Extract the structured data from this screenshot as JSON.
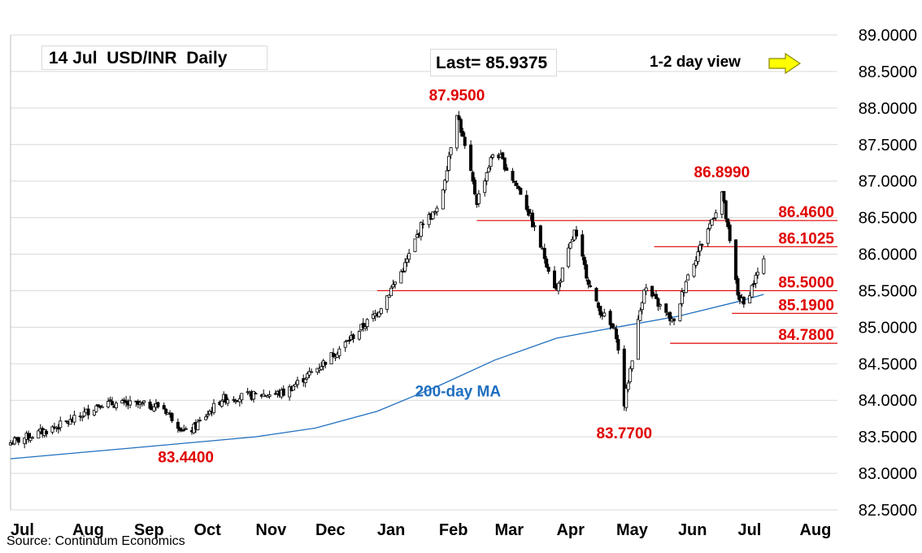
{
  "header": {
    "title": "14 Jul  USD/INR  Daily",
    "last": "Last= 85.9375",
    "view": "1-2 day view",
    "view_arrow": "right-arrow-icon",
    "source": "Source: Continuum Economics"
  },
  "colors": {
    "candle_up": "#ffffff",
    "candle_down": "#000000",
    "ma_line": "#1f6fbf",
    "annotation": "#e00000",
    "arrow_fill": "#ffff00",
    "grid": "#d9d9d9"
  },
  "chart_data": {
    "type": "candlestick",
    "title": "14 Jul  USD/INR  Daily",
    "x_tick_labels": [
      "Jul",
      "Aug",
      "Sep",
      "Oct",
      "Nov",
      "Dec",
      "Jan",
      "Feb",
      "Mar",
      "Apr",
      "May",
      "Jun",
      "Jul",
      "Aug"
    ],
    "y_tick_labels": [
      "89.0000",
      "88.5000",
      "88.0000",
      "87.5000",
      "87.0000",
      "86.5000",
      "86.0000",
      "85.5000",
      "85.0000",
      "84.5000",
      "84.0000",
      "83.5000",
      "83.0000",
      "82.5000"
    ],
    "ylim": [
      82.5,
      89.0
    ],
    "grid": true,
    "y_axis_side": "right",
    "last_close": 85.9375,
    "series_points": [
      {
        "date": "2024-07-01",
        "close": 83.42
      },
      {
        "date": "2024-07-15",
        "close": 83.55
      },
      {
        "date": "2024-08-01",
        "close": 83.72
      },
      {
        "date": "2024-08-15",
        "close": 83.96
      },
      {
        "date": "2024-09-01",
        "close": 83.94
      },
      {
        "date": "2024-09-15",
        "close": 83.92
      },
      {
        "date": "2024-09-27",
        "close": 83.55
      },
      {
        "date": "2024-10-01",
        "close": 83.62
      },
      {
        "date": "2024-10-15",
        "close": 84.02
      },
      {
        "date": "2024-11-01",
        "close": 84.07
      },
      {
        "date": "2024-11-15",
        "close": 84.1
      },
      {
        "date": "2024-12-01",
        "close": 84.42
      },
      {
        "date": "2024-12-15",
        "close": 84.75
      },
      {
        "date": "2025-01-01",
        "close": 85.2
      },
      {
        "date": "2025-01-15",
        "close": 85.85
      },
      {
        "date": "2025-01-24",
        "close": 86.45
      },
      {
        "date": "2025-02-01",
        "close": 86.6
      },
      {
        "date": "2025-02-10",
        "close": 87.95
      },
      {
        "date": "2025-02-20",
        "close": 86.72
      },
      {
        "date": "2025-03-01",
        "close": 87.45
      },
      {
        "date": "2025-03-15",
        "close": 86.8
      },
      {
        "date": "2025-04-01",
        "close": 85.5
      },
      {
        "date": "2025-04-10",
        "close": 86.3
      },
      {
        "date": "2025-04-20",
        "close": 85.35
      },
      {
        "date": "2025-05-01",
        "close": 84.9
      },
      {
        "date": "2025-05-05",
        "close": 83.95
      },
      {
        "date": "2025-05-15",
        "close": 85.55
      },
      {
        "date": "2025-05-30",
        "close": 85.05
      },
      {
        "date": "2025-06-05",
        "close": 85.65
      },
      {
        "date": "2025-06-20",
        "close": 86.6
      },
      {
        "date": "2025-06-23",
        "close": 86.85
      },
      {
        "date": "2025-07-01",
        "close": 85.45
      },
      {
        "date": "2025-07-04",
        "close": 85.3
      },
      {
        "date": "2025-07-14",
        "close": 85.9375
      }
    ],
    "ma200_points": [
      {
        "date": "2024-07-01",
        "value": 83.2
      },
      {
        "date": "2024-09-01",
        "value": 83.35
      },
      {
        "date": "2024-11-01",
        "value": 83.5
      },
      {
        "date": "2024-12-01",
        "value": 83.62
      },
      {
        "date": "2025-01-01",
        "value": 83.85
      },
      {
        "date": "2025-02-01",
        "value": 84.2
      },
      {
        "date": "2025-03-01",
        "value": 84.55
      },
      {
        "date": "2025-04-01",
        "value": 84.85
      },
      {
        "date": "2025-05-01",
        "value": 85.0
      },
      {
        "date": "2025-06-01",
        "value": 85.15
      },
      {
        "date": "2025-07-01",
        "value": 85.35
      },
      {
        "date": "2025-07-14",
        "value": 85.45
      }
    ],
    "ma_label": "200-day MA",
    "horizontal_levels": [
      {
        "value": 86.46,
        "label": "86.4600"
      },
      {
        "value": 86.1025,
        "label": "86.1025"
      },
      {
        "value": 85.5,
        "label": "85.5000"
      },
      {
        "value": 85.19,
        "label": "85.1900"
      },
      {
        "value": 84.78,
        "label": "84.7800"
      }
    ],
    "point_annotations": [
      {
        "value": 87.95,
        "label": "87.9500",
        "date": "2025-02-10"
      },
      {
        "value": 86.899,
        "label": "86.8990",
        "date": "2025-06-23"
      },
      {
        "value": 83.77,
        "label": "83.7700",
        "date": "2025-05-05"
      },
      {
        "value": 83.44,
        "label": "83.4400",
        "date": "2024-09-27"
      }
    ]
  }
}
